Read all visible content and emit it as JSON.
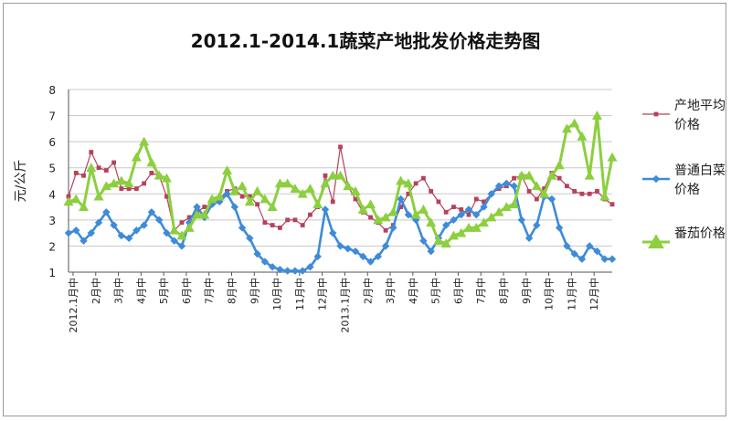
{
  "chart_data": {
    "type": "line",
    "title": "2012.1-2014.1蔬菜产地批发价格走势图",
    "ylabel": "元/公斤",
    "xlabel": "",
    "ylim": [
      1,
      8
    ],
    "yticks": [
      "1",
      "2",
      "3",
      "4",
      "5",
      "6",
      "7",
      "8"
    ],
    "grid": true,
    "legend_position": "right",
    "x_tick_labels": [
      "2012.1月中",
      "2月中",
      "3月中",
      "4月中",
      "5月中",
      "6月中",
      "7月中",
      "8月中",
      "9月中",
      "10月中",
      "11月中",
      "12月中",
      "2013.1月中",
      "2月中",
      "3月中",
      "4月中",
      "5月中",
      "6月中",
      "7月中",
      "8月中",
      "9月中",
      "10月中",
      "11月中",
      "12月中"
    ],
    "point_count": 73,
    "series": [
      {
        "name": "产地平均价格",
        "color": "#b5415b",
        "marker": "square",
        "values": [
          3.9,
          4.8,
          4.7,
          5.6,
          5.0,
          4.9,
          5.2,
          4.2,
          4.2,
          4.2,
          4.4,
          4.8,
          4.7,
          3.9,
          2.6,
          2.9,
          3.1,
          3.3,
          3.5,
          3.6,
          3.8,
          4.1,
          4.2,
          3.9,
          3.9,
          3.6,
          2.9,
          2.8,
          2.7,
          3.0,
          3.0,
          2.8,
          3.2,
          3.5,
          4.7,
          3.7,
          5.8,
          4.3,
          3.8,
          3.3,
          3.1,
          2.9,
          2.6,
          2.8,
          3.5,
          4.0,
          4.4,
          4.6,
          4.1,
          3.7,
          3.3,
          3.5,
          3.4,
          3.2,
          3.8,
          3.7,
          4.0,
          4.2,
          4.3,
          4.6,
          4.7,
          4.1,
          3.8,
          4.2,
          4.8,
          4.6,
          4.3,
          4.1,
          4.0,
          4.0,
          4.1,
          3.8,
          3.6
        ]
      },
      {
        "name": "普通白菜价格",
        "color": "#3d8bd9",
        "marker": "diamond",
        "values": [
          2.5,
          2.6,
          2.2,
          2.5,
          2.9,
          3.3,
          2.8,
          2.4,
          2.3,
          2.6,
          2.8,
          3.3,
          3.0,
          2.5,
          2.2,
          2.0,
          2.9,
          3.5,
          3.1,
          3.6,
          3.7,
          4.0,
          3.5,
          2.7,
          2.3,
          1.7,
          1.4,
          1.2,
          1.1,
          1.05,
          1.05,
          1.05,
          1.2,
          1.6,
          3.4,
          2.5,
          2.0,
          1.9,
          1.8,
          1.6,
          1.4,
          1.6,
          2.0,
          2.7,
          3.8,
          3.2,
          3.0,
          2.2,
          1.8,
          2.3,
          2.8,
          3.0,
          3.2,
          3.4,
          3.2,
          3.5,
          4.0,
          4.3,
          4.4,
          4.3,
          3.0,
          2.3,
          2.8,
          3.9,
          3.8,
          2.7,
          2.0,
          1.7,
          1.5,
          2.0,
          1.8,
          1.5,
          1.5
        ]
      },
      {
        "name": "番茄价格",
        "color": "#8ccf3f",
        "marker": "triangle",
        "values": [
          3.7,
          3.8,
          3.5,
          5.0,
          3.9,
          4.3,
          4.4,
          4.5,
          4.4,
          5.4,
          6.0,
          5.2,
          4.7,
          4.6,
          2.6,
          2.4,
          2.7,
          3.2,
          3.2,
          3.8,
          3.9,
          4.9,
          4.1,
          4.3,
          3.7,
          4.1,
          3.8,
          3.5,
          4.4,
          4.4,
          4.2,
          4.0,
          4.2,
          3.6,
          4.4,
          4.7,
          4.7,
          4.3,
          4.1,
          3.4,
          3.6,
          3.0,
          3.1,
          3.3,
          4.5,
          4.4,
          3.2,
          3.4,
          2.9,
          2.2,
          2.1,
          2.4,
          2.5,
          2.7,
          2.7,
          2.9,
          3.1,
          3.3,
          3.5,
          3.6,
          4.7,
          4.7,
          4.3,
          4.0,
          4.7,
          5.1,
          6.5,
          6.7,
          6.2,
          4.7,
          7.0,
          3.9,
          5.4
        ]
      }
    ]
  }
}
